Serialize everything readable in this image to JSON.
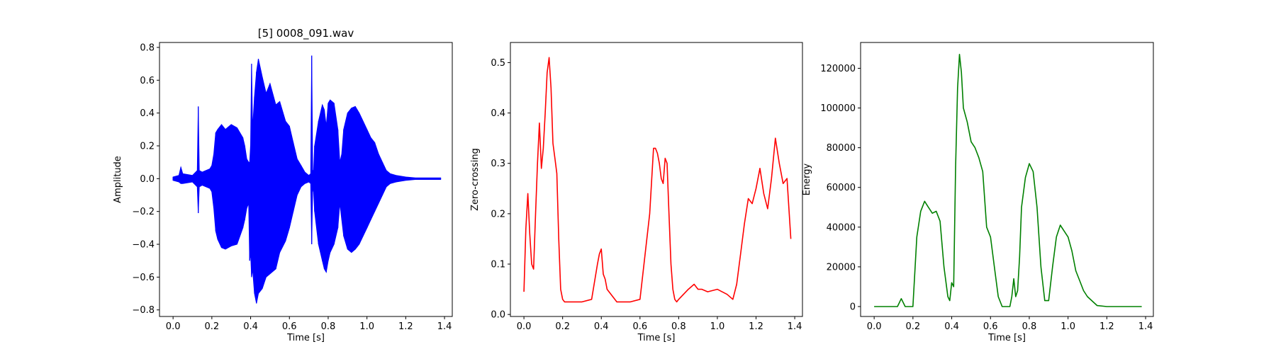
{
  "chart_data": [
    {
      "type": "line",
      "title": "[5] 0008_091.wav",
      "xlabel": "Time [s]",
      "ylabel": "Amplitude",
      "xlim": [
        -0.07,
        1.44
      ],
      "ylim": [
        -0.84,
        0.83
      ],
      "xticks": [
        0.0,
        0.2,
        0.4,
        0.6,
        0.8,
        1.0,
        1.2,
        1.4
      ],
      "yticks": [
        -0.8,
        -0.6,
        -0.4,
        -0.2,
        0.0,
        0.2,
        0.4,
        0.6,
        0.8
      ],
      "xtick_labels": [
        "0.0",
        "0.2",
        "0.4",
        "0.6",
        "0.8",
        "1.0",
        "1.2",
        "1.4"
      ],
      "ytick_labels": [
        "−0.8",
        "−0.6",
        "−0.4",
        "−0.2",
        "0.0",
        "0.2",
        "0.4",
        "0.6",
        "0.8"
      ],
      "color": "#0000ff",
      "grid": false,
      "series": [
        {
          "style": "waveform-envelope",
          "x": [
            0.0,
            0.03,
            0.04,
            0.05,
            0.1,
            0.125,
            0.13,
            0.135,
            0.15,
            0.19,
            0.2,
            0.21,
            0.22,
            0.23,
            0.25,
            0.27,
            0.3,
            0.33,
            0.36,
            0.37,
            0.38,
            0.39,
            0.395,
            0.4,
            0.405,
            0.41,
            0.42,
            0.43,
            0.44,
            0.46,
            0.48,
            0.5,
            0.53,
            0.55,
            0.58,
            0.6,
            0.62,
            0.64,
            0.66,
            0.68,
            0.7,
            0.71,
            0.715,
            0.72,
            0.725,
            0.73,
            0.75,
            0.77,
            0.78,
            0.79,
            0.8,
            0.81,
            0.83,
            0.85,
            0.86,
            0.87,
            0.88,
            0.9,
            0.92,
            0.94,
            0.96,
            0.98,
            1.0,
            1.02,
            1.04,
            1.06,
            1.08,
            1.1,
            1.12,
            1.15,
            1.2,
            1.25,
            1.3,
            1.38
          ],
          "upper": [
            0.01,
            0.02,
            0.07,
            0.03,
            0.02,
            0.05,
            0.44,
            0.05,
            0.04,
            0.06,
            0.08,
            0.15,
            0.28,
            0.3,
            0.33,
            0.3,
            0.33,
            0.31,
            0.25,
            0.2,
            0.12,
            0.1,
            0.1,
            0.2,
            0.7,
            0.3,
            0.5,
            0.65,
            0.73,
            0.62,
            0.52,
            0.58,
            0.45,
            0.47,
            0.35,
            0.32,
            0.22,
            0.12,
            0.08,
            0.04,
            0.02,
            0.03,
            0.75,
            0.05,
            0.05,
            0.2,
            0.35,
            0.45,
            0.42,
            0.32,
            0.46,
            0.48,
            0.46,
            0.3,
            0.1,
            0.15,
            0.3,
            0.4,
            0.43,
            0.44,
            0.4,
            0.35,
            0.3,
            0.25,
            0.22,
            0.15,
            0.1,
            0.05,
            0.03,
            0.02,
            0.01,
            0.005,
            0.005,
            0.005
          ],
          "lower": [
            -0.01,
            -0.02,
            -0.03,
            -0.03,
            -0.02,
            -0.05,
            -0.21,
            -0.05,
            -0.04,
            -0.06,
            -0.08,
            -0.18,
            -0.32,
            -0.37,
            -0.42,
            -0.43,
            -0.41,
            -0.4,
            -0.3,
            -0.25,
            -0.18,
            -0.15,
            -0.5,
            -0.45,
            -0.6,
            -0.55,
            -0.7,
            -0.76,
            -0.7,
            -0.67,
            -0.6,
            -0.58,
            -0.55,
            -0.45,
            -0.38,
            -0.3,
            -0.2,
            -0.1,
            -0.05,
            -0.03,
            -0.02,
            -0.03,
            -0.4,
            -0.05,
            -0.08,
            -0.2,
            -0.4,
            -0.5,
            -0.55,
            -0.57,
            -0.5,
            -0.45,
            -0.4,
            -0.3,
            -0.15,
            -0.25,
            -0.35,
            -0.43,
            -0.45,
            -0.43,
            -0.4,
            -0.35,
            -0.3,
            -0.25,
            -0.2,
            -0.15,
            -0.1,
            -0.05,
            -0.03,
            -0.02,
            -0.01,
            -0.005,
            -0.005,
            -0.005
          ]
        }
      ]
    },
    {
      "type": "line",
      "title": "",
      "xlabel": "Time [s]",
      "ylabel": "Zero-crossing",
      "xlim": [
        -0.07,
        1.44
      ],
      "ylim": [
        -0.004,
        0.54
      ],
      "xticks": [
        0.0,
        0.2,
        0.4,
        0.6,
        0.8,
        1.0,
        1.2,
        1.4
      ],
      "yticks": [
        0.0,
        0.1,
        0.2,
        0.3,
        0.4,
        0.5
      ],
      "xtick_labels": [
        "0.0",
        "0.2",
        "0.4",
        "0.6",
        "0.8",
        "1.0",
        "1.2",
        "1.4"
      ],
      "ytick_labels": [
        "0.0",
        "0.1",
        "0.2",
        "0.3",
        "0.4",
        "0.5"
      ],
      "color": "#ff0000",
      "grid": false,
      "series": [
        {
          "x": [
            0.0,
            0.01,
            0.02,
            0.03,
            0.04,
            0.05,
            0.06,
            0.07,
            0.08,
            0.09,
            0.1,
            0.11,
            0.12,
            0.13,
            0.14,
            0.15,
            0.16,
            0.17,
            0.18,
            0.19,
            0.2,
            0.21,
            0.22,
            0.25,
            0.3,
            0.35,
            0.38,
            0.39,
            0.4,
            0.41,
            0.42,
            0.43,
            0.45,
            0.48,
            0.5,
            0.55,
            0.6,
            0.65,
            0.67,
            0.68,
            0.69,
            0.7,
            0.71,
            0.72,
            0.73,
            0.74,
            0.75,
            0.76,
            0.77,
            0.78,
            0.79,
            0.8,
            0.85,
            0.88,
            0.9,
            0.92,
            0.95,
            1.0,
            1.05,
            1.08,
            1.1,
            1.12,
            1.14,
            1.16,
            1.18,
            1.2,
            1.22,
            1.24,
            1.26,
            1.28,
            1.3,
            1.32,
            1.34,
            1.36,
            1.38
          ],
          "y": [
            0.045,
            0.17,
            0.24,
            0.16,
            0.1,
            0.09,
            0.2,
            0.3,
            0.38,
            0.29,
            0.33,
            0.4,
            0.48,
            0.51,
            0.45,
            0.34,
            0.31,
            0.28,
            0.15,
            0.05,
            0.03,
            0.025,
            0.025,
            0.025,
            0.025,
            0.03,
            0.1,
            0.12,
            0.13,
            0.08,
            0.07,
            0.05,
            0.04,
            0.025,
            0.025,
            0.025,
            0.03,
            0.2,
            0.33,
            0.33,
            0.32,
            0.3,
            0.27,
            0.26,
            0.31,
            0.3,
            0.2,
            0.1,
            0.05,
            0.03,
            0.025,
            0.03,
            0.05,
            0.06,
            0.05,
            0.05,
            0.045,
            0.05,
            0.04,
            0.03,
            0.06,
            0.12,
            0.18,
            0.23,
            0.22,
            0.25,
            0.29,
            0.24,
            0.21,
            0.27,
            0.35,
            0.3,
            0.26,
            0.27,
            0.15
          ]
        }
      ]
    },
    {
      "type": "line",
      "title": "",
      "xlabel": "Time [s]",
      "ylabel": "Energy",
      "xlim": [
        -0.07,
        1.44
      ],
      "ylim": [
        -5000,
        133000
      ],
      "xticks": [
        0.0,
        0.2,
        0.4,
        0.6,
        0.8,
        1.0,
        1.2,
        1.4
      ],
      "yticks": [
        0,
        20000,
        40000,
        60000,
        80000,
        100000,
        120000
      ],
      "xtick_labels": [
        "0.0",
        "0.2",
        "0.4",
        "0.6",
        "0.8",
        "1.0",
        "1.2",
        "1.4"
      ],
      "ytick_labels": [
        "0",
        "20000",
        "40000",
        "60000",
        "80000",
        "100000",
        "120000"
      ],
      "color": "#008000",
      "grid": false,
      "series": [
        {
          "x": [
            0.0,
            0.12,
            0.14,
            0.16,
            0.2,
            0.22,
            0.24,
            0.26,
            0.28,
            0.3,
            0.32,
            0.34,
            0.36,
            0.38,
            0.39,
            0.4,
            0.41,
            0.42,
            0.43,
            0.44,
            0.45,
            0.46,
            0.48,
            0.5,
            0.52,
            0.54,
            0.56,
            0.58,
            0.6,
            0.62,
            0.64,
            0.66,
            0.68,
            0.7,
            0.71,
            0.72,
            0.73,
            0.74,
            0.75,
            0.76,
            0.78,
            0.8,
            0.82,
            0.84,
            0.86,
            0.88,
            0.9,
            0.92,
            0.94,
            0.96,
            0.98,
            1.0,
            1.02,
            1.04,
            1.06,
            1.08,
            1.1,
            1.15,
            1.2,
            1.3,
            1.38
          ],
          "y": [
            0,
            0,
            4000,
            0,
            0,
            35000,
            48000,
            53000,
            50000,
            47000,
            48000,
            43000,
            20000,
            5000,
            3000,
            12000,
            10000,
            70000,
            110000,
            127000,
            118000,
            100000,
            93000,
            83000,
            80000,
            75000,
            68000,
            40000,
            35000,
            20000,
            5000,
            0,
            0,
            0,
            5000,
            14000,
            5000,
            8000,
            25000,
            50000,
            65000,
            72000,
            68000,
            50000,
            20000,
            3000,
            3000,
            20000,
            35000,
            41000,
            38000,
            35000,
            28000,
            18000,
            13000,
            8000,
            5000,
            500,
            0,
            0,
            0
          ]
        }
      ]
    }
  ]
}
